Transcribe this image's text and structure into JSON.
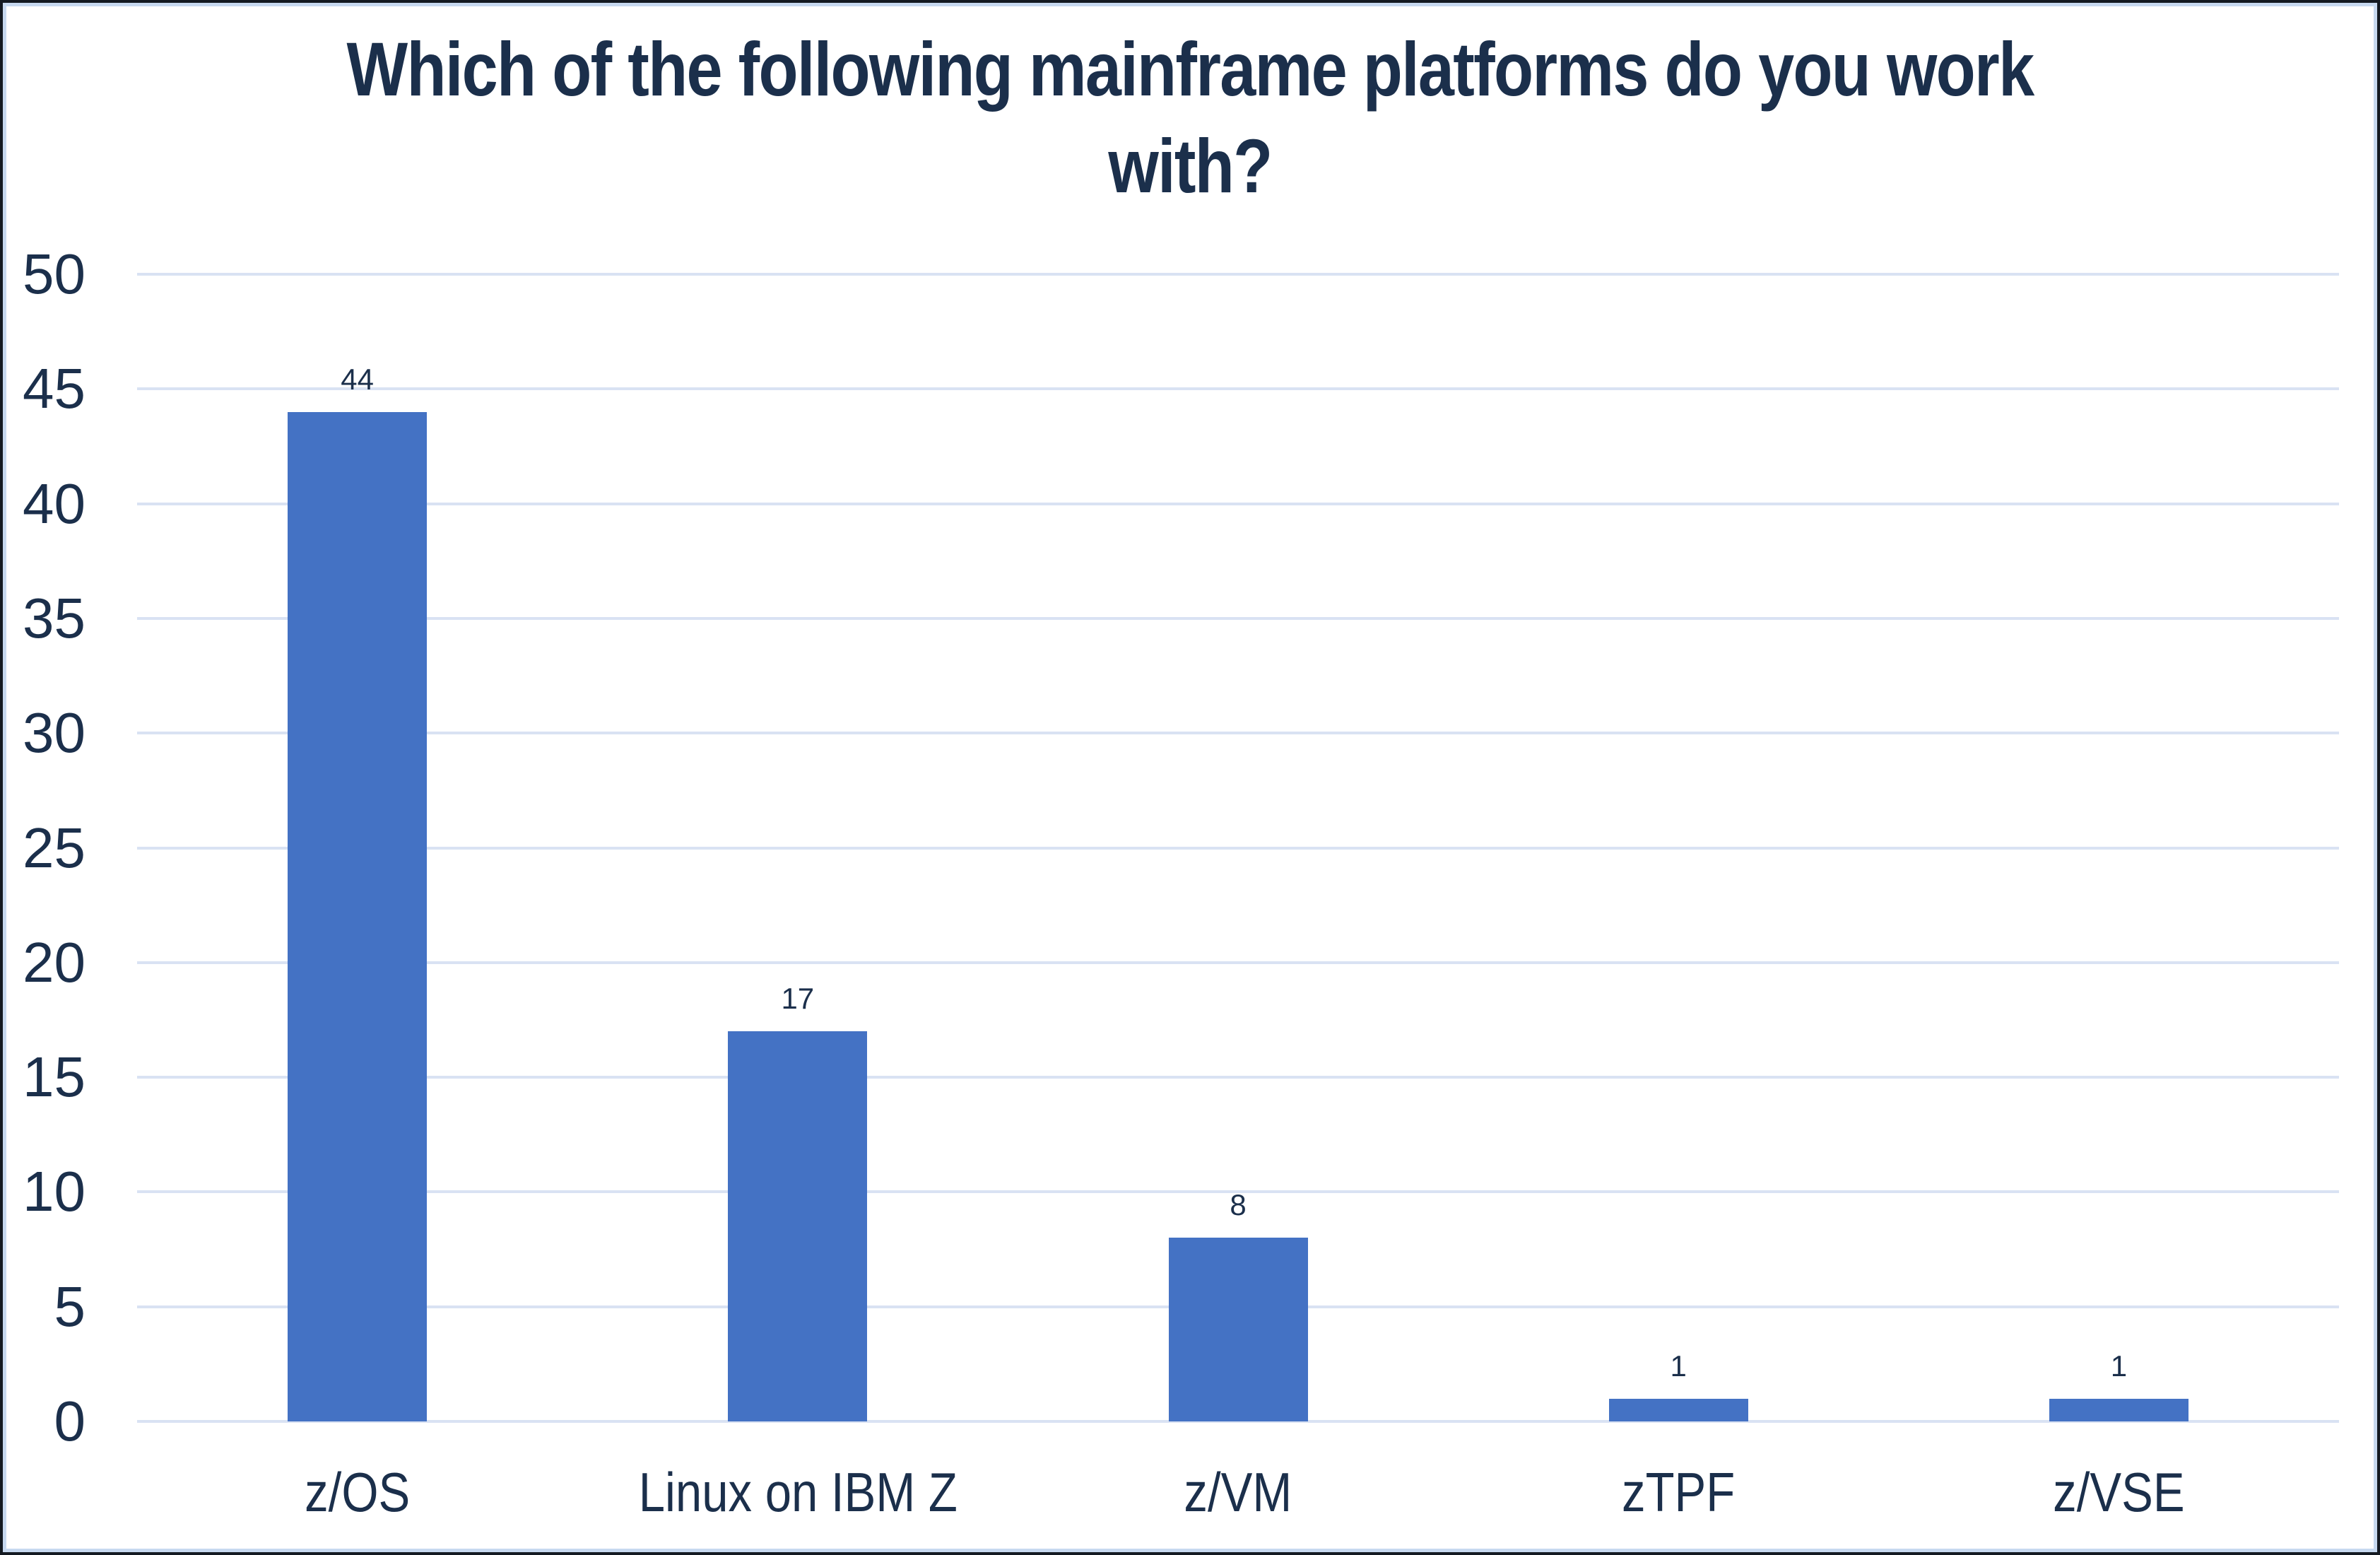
{
  "chart_data": {
    "type": "bar",
    "title": "Which of the following mainframe platforms do you work with?",
    "title_lines": [
      "Which of the following mainframe platforms do you work",
      "with?"
    ],
    "categories": [
      "z/OS",
      "Linux on IBM Z",
      "z/VM",
      "zTPF",
      "z/VSE"
    ],
    "values": [
      44,
      17,
      8,
      1,
      1
    ],
    "data_labels": [
      "44",
      "17",
      "8",
      "1",
      "1"
    ],
    "xlabel": "",
    "ylabel": "",
    "ylim": [
      0,
      50
    ],
    "ytick_step": 5,
    "yticks": [
      50,
      45,
      40,
      35,
      30,
      25,
      20,
      15,
      10,
      5,
      0
    ],
    "grid": true,
    "legend_position": "none",
    "colors": {
      "bar": "#4472C4",
      "text": "#1B2F4B",
      "gridline": "#D9E2F3",
      "chart_border": "#C7D9F0",
      "outer_border": "#141A22",
      "background": "#FFFFFF"
    }
  }
}
